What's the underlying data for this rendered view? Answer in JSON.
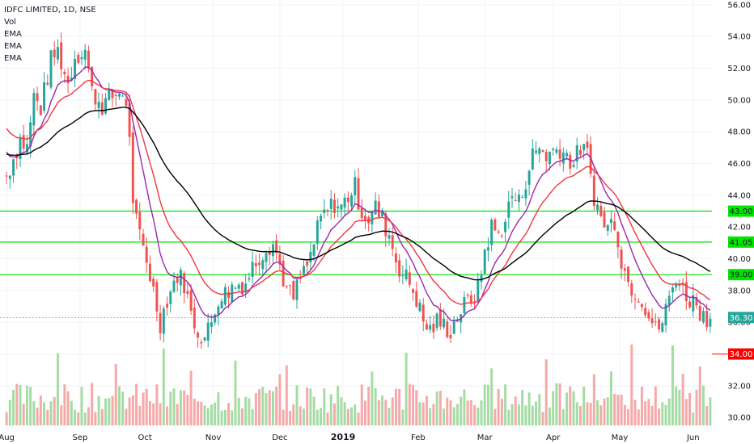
{
  "legend": {
    "title": "IDFC LIMITED, 1D, NSE",
    "lines": [
      "Vol",
      "EMA",
      "EMA",
      "EMA"
    ]
  },
  "colors": {
    "up": "#26a69a",
    "down": "#ef5350",
    "vol_up": "#a5dca3",
    "vol_down": "#f5a9a9",
    "ema_fast": "#9c27b0",
    "ema_mid": "#f23645",
    "ema_slow": "#000000",
    "level": "#00e600",
    "current": "#26a69a",
    "target": "#ff0000"
  },
  "chart_data": {
    "type": "candlestick",
    "y_axis": {
      "ticks": [
        "30.00",
        "32.00",
        "34.00",
        "36.00",
        "38.00",
        "40.00",
        "42.00",
        "44.00",
        "46.00",
        "48.00",
        "50.00",
        "52.00",
        "54.00",
        "56.00"
      ],
      "range": [
        29.5,
        56.3
      ]
    },
    "x_axis": {
      "labels": [
        {
          "text": "Aug",
          "bold": false,
          "pos": 0.0
        },
        {
          "text": "Sep",
          "bold": false,
          "pos": 21.5
        },
        {
          "text": "Oct",
          "bold": false,
          "pos": 40.5
        },
        {
          "text": "Nov",
          "bold": false,
          "pos": 60.5
        },
        {
          "text": "Dec",
          "bold": false,
          "pos": 80.0
        },
        {
          "text": "2019",
          "bold": true,
          "pos": 98.5
        },
        {
          "text": "Feb",
          "bold": false,
          "pos": 120.5
        },
        {
          "text": "Mar",
          "bold": false,
          "pos": 140.0
        },
        {
          "text": "Apr",
          "bold": false,
          "pos": 160.0
        },
        {
          "text": "May",
          "bold": false,
          "pos": 179.5
        },
        {
          "text": "Jun",
          "bold": false,
          "pos": 201.0
        }
      ],
      "bars_total": 207
    },
    "price_path": [
      [
        0,
        45.2
      ],
      [
        4,
        47.5
      ],
      [
        6,
        47.0
      ],
      [
        8,
        50.2
      ],
      [
        10,
        49.5
      ],
      [
        13,
        52.5
      ],
      [
        15,
        53.1
      ],
      [
        18,
        51.0
      ],
      [
        20,
        52.8
      ],
      [
        23,
        53.2
      ],
      [
        25,
        50.5
      ],
      [
        28,
        49.7
      ],
      [
        31,
        50.2
      ],
      [
        34,
        50.6
      ],
      [
        36,
        48.0
      ],
      [
        37,
        43.0
      ],
      [
        39,
        41.5
      ],
      [
        41,
        40.0
      ],
      [
        43,
        38.0
      ],
      [
        45,
        36.0
      ],
      [
        47,
        37.5
      ],
      [
        49,
        38.5
      ],
      [
        50,
        39.0
      ],
      [
        52,
        38.5
      ],
      [
        54,
        36.5
      ],
      [
        56,
        35.5
      ],
      [
        58,
        35.0
      ],
      [
        60,
        36.0
      ],
      [
        62,
        37.6
      ],
      [
        64,
        37.8
      ],
      [
        66,
        38.2
      ],
      [
        68,
        38.4
      ],
      [
        70,
        38.5
      ],
      [
        72,
        39.5
      ],
      [
        74,
        40.2
      ],
      [
        76,
        40.8
      ],
      [
        78,
        41.0
      ],
      [
        80,
        39.6
      ],
      [
        82,
        38.0
      ],
      [
        84,
        37.5
      ],
      [
        86,
        38.8
      ],
      [
        88,
        39.5
      ],
      [
        90,
        41.0
      ],
      [
        92,
        42.5
      ],
      [
        94,
        43.0
      ],
      [
        96,
        43.5
      ],
      [
        98,
        43.2
      ],
      [
        100,
        44.0
      ],
      [
        102,
        44.5
      ],
      [
        104,
        43.0
      ],
      [
        106,
        42.5
      ],
      [
        108,
        43.2
      ],
      [
        110,
        42.5
      ],
      [
        112,
        41.5
      ],
      [
        114,
        40.0
      ],
      [
        116,
        39.0
      ],
      [
        118,
        38.5
      ],
      [
        120,
        37.5
      ],
      [
        122,
        36.0
      ],
      [
        124,
        35.5
      ],
      [
        126,
        36.0
      ],
      [
        128,
        35.8
      ],
      [
        130,
        35.5
      ],
      [
        132,
        36.5
      ],
      [
        134,
        37.0
      ],
      [
        136,
        37.5
      ],
      [
        138,
        38.0
      ],
      [
        140,
        40.5
      ],
      [
        142,
        42.0
      ],
      [
        144,
        41.5
      ],
      [
        146,
        42.5
      ],
      [
        148,
        44.0
      ],
      [
        150,
        43.5
      ],
      [
        152,
        45.0
      ],
      [
        154,
        46.5
      ],
      [
        156,
        47.0
      ],
      [
        158,
        46.5
      ],
      [
        160,
        46.8
      ],
      [
        162,
        47.0
      ],
      [
        164,
        46.5
      ],
      [
        166,
        46.0
      ],
      [
        168,
        47.0
      ],
      [
        170,
        46.5
      ],
      [
        172,
        44.0
      ],
      [
        174,
        42.5
      ],
      [
        176,
        42.0
      ],
      [
        178,
        42.5
      ],
      [
        180,
        40.0
      ],
      [
        182,
        38.5
      ],
      [
        184,
        38.0
      ],
      [
        186,
        37.5
      ],
      [
        188,
        36.5
      ],
      [
        190,
        35.5
      ],
      [
        192,
        36.0
      ],
      [
        194,
        37.5
      ],
      [
        196,
        39.0
      ],
      [
        198,
        38.0
      ],
      [
        200,
        37.5
      ],
      [
        202,
        37.2
      ],
      [
        204,
        36.4
      ],
      [
        206,
        36.3
      ]
    ],
    "horizontal_levels": [
      {
        "value": 43.0,
        "label": "43.00",
        "kind": "level"
      },
      {
        "value": 41.05,
        "label": "41.05",
        "kind": "level"
      },
      {
        "value": 39.0,
        "label": "39.00",
        "kind": "level"
      },
      {
        "value": 36.3,
        "label": "36.30",
        "kind": "current"
      },
      {
        "value": 34.0,
        "label": "34.00",
        "kind": "target"
      }
    ],
    "ema_periods": [
      10,
      20,
      50
    ],
    "volume_max_frac": 0.2,
    "seed": 7
  }
}
